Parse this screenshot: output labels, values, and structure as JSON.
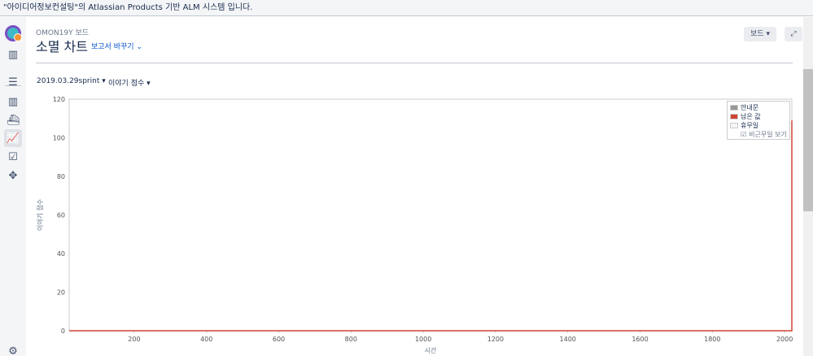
{
  "banner": {
    "text": "\"아이디어정보컨설팅\"의 Atlassian Products 기반 ALM 시스템 입니다."
  },
  "sidebar": {
    "items": [
      {
        "icon": "board-icon"
      },
      {
        "icon": "backlog-icon"
      },
      {
        "icon": "columns-icon"
      },
      {
        "icon": "ship-icon"
      },
      {
        "icon": "reports-icon",
        "active": true
      },
      {
        "icon": "issues-icon"
      },
      {
        "icon": "addon-icon"
      },
      {
        "icon": "settings-icon"
      }
    ]
  },
  "header": {
    "breadcrumb": "OMON19Y 보드",
    "title": "소멸 차트",
    "switch_report": "보고서 바꾸기",
    "board_button": "보드",
    "fullscreen_icon": "expand-icon"
  },
  "filters": {
    "sprint": "2019.03.29sprint",
    "estimate": "이야기 점수"
  },
  "legend": {
    "items": [
      "안내문",
      "남은 값",
      "휴무일"
    ],
    "checkbox_label": "비근무일 보기",
    "checked": true
  },
  "colors": {
    "remaining": "#d04437",
    "guide": "#999999",
    "nonworking": "#f5f5f5",
    "link": "#0052cc"
  },
  "chart_data": {
    "type": "line",
    "xlabel": "시간",
    "ylabel": "이야기 점수",
    "xlim": [
      20,
      2020
    ],
    "ylim": [
      0,
      120
    ],
    "xticks": [
      200,
      400,
      600,
      800,
      1000,
      1200,
      1400,
      1600,
      1800,
      2000
    ],
    "yticks": [
      0,
      20,
      40,
      60,
      80,
      100,
      120
    ],
    "series": [
      {
        "name": "남은 값",
        "color": "#d04437",
        "points": [
          [
            20,
            0
          ],
          [
            2020,
            0
          ],
          [
            2020,
            109
          ]
        ]
      }
    ],
    "grid": false,
    "legend_position": "top-right"
  }
}
